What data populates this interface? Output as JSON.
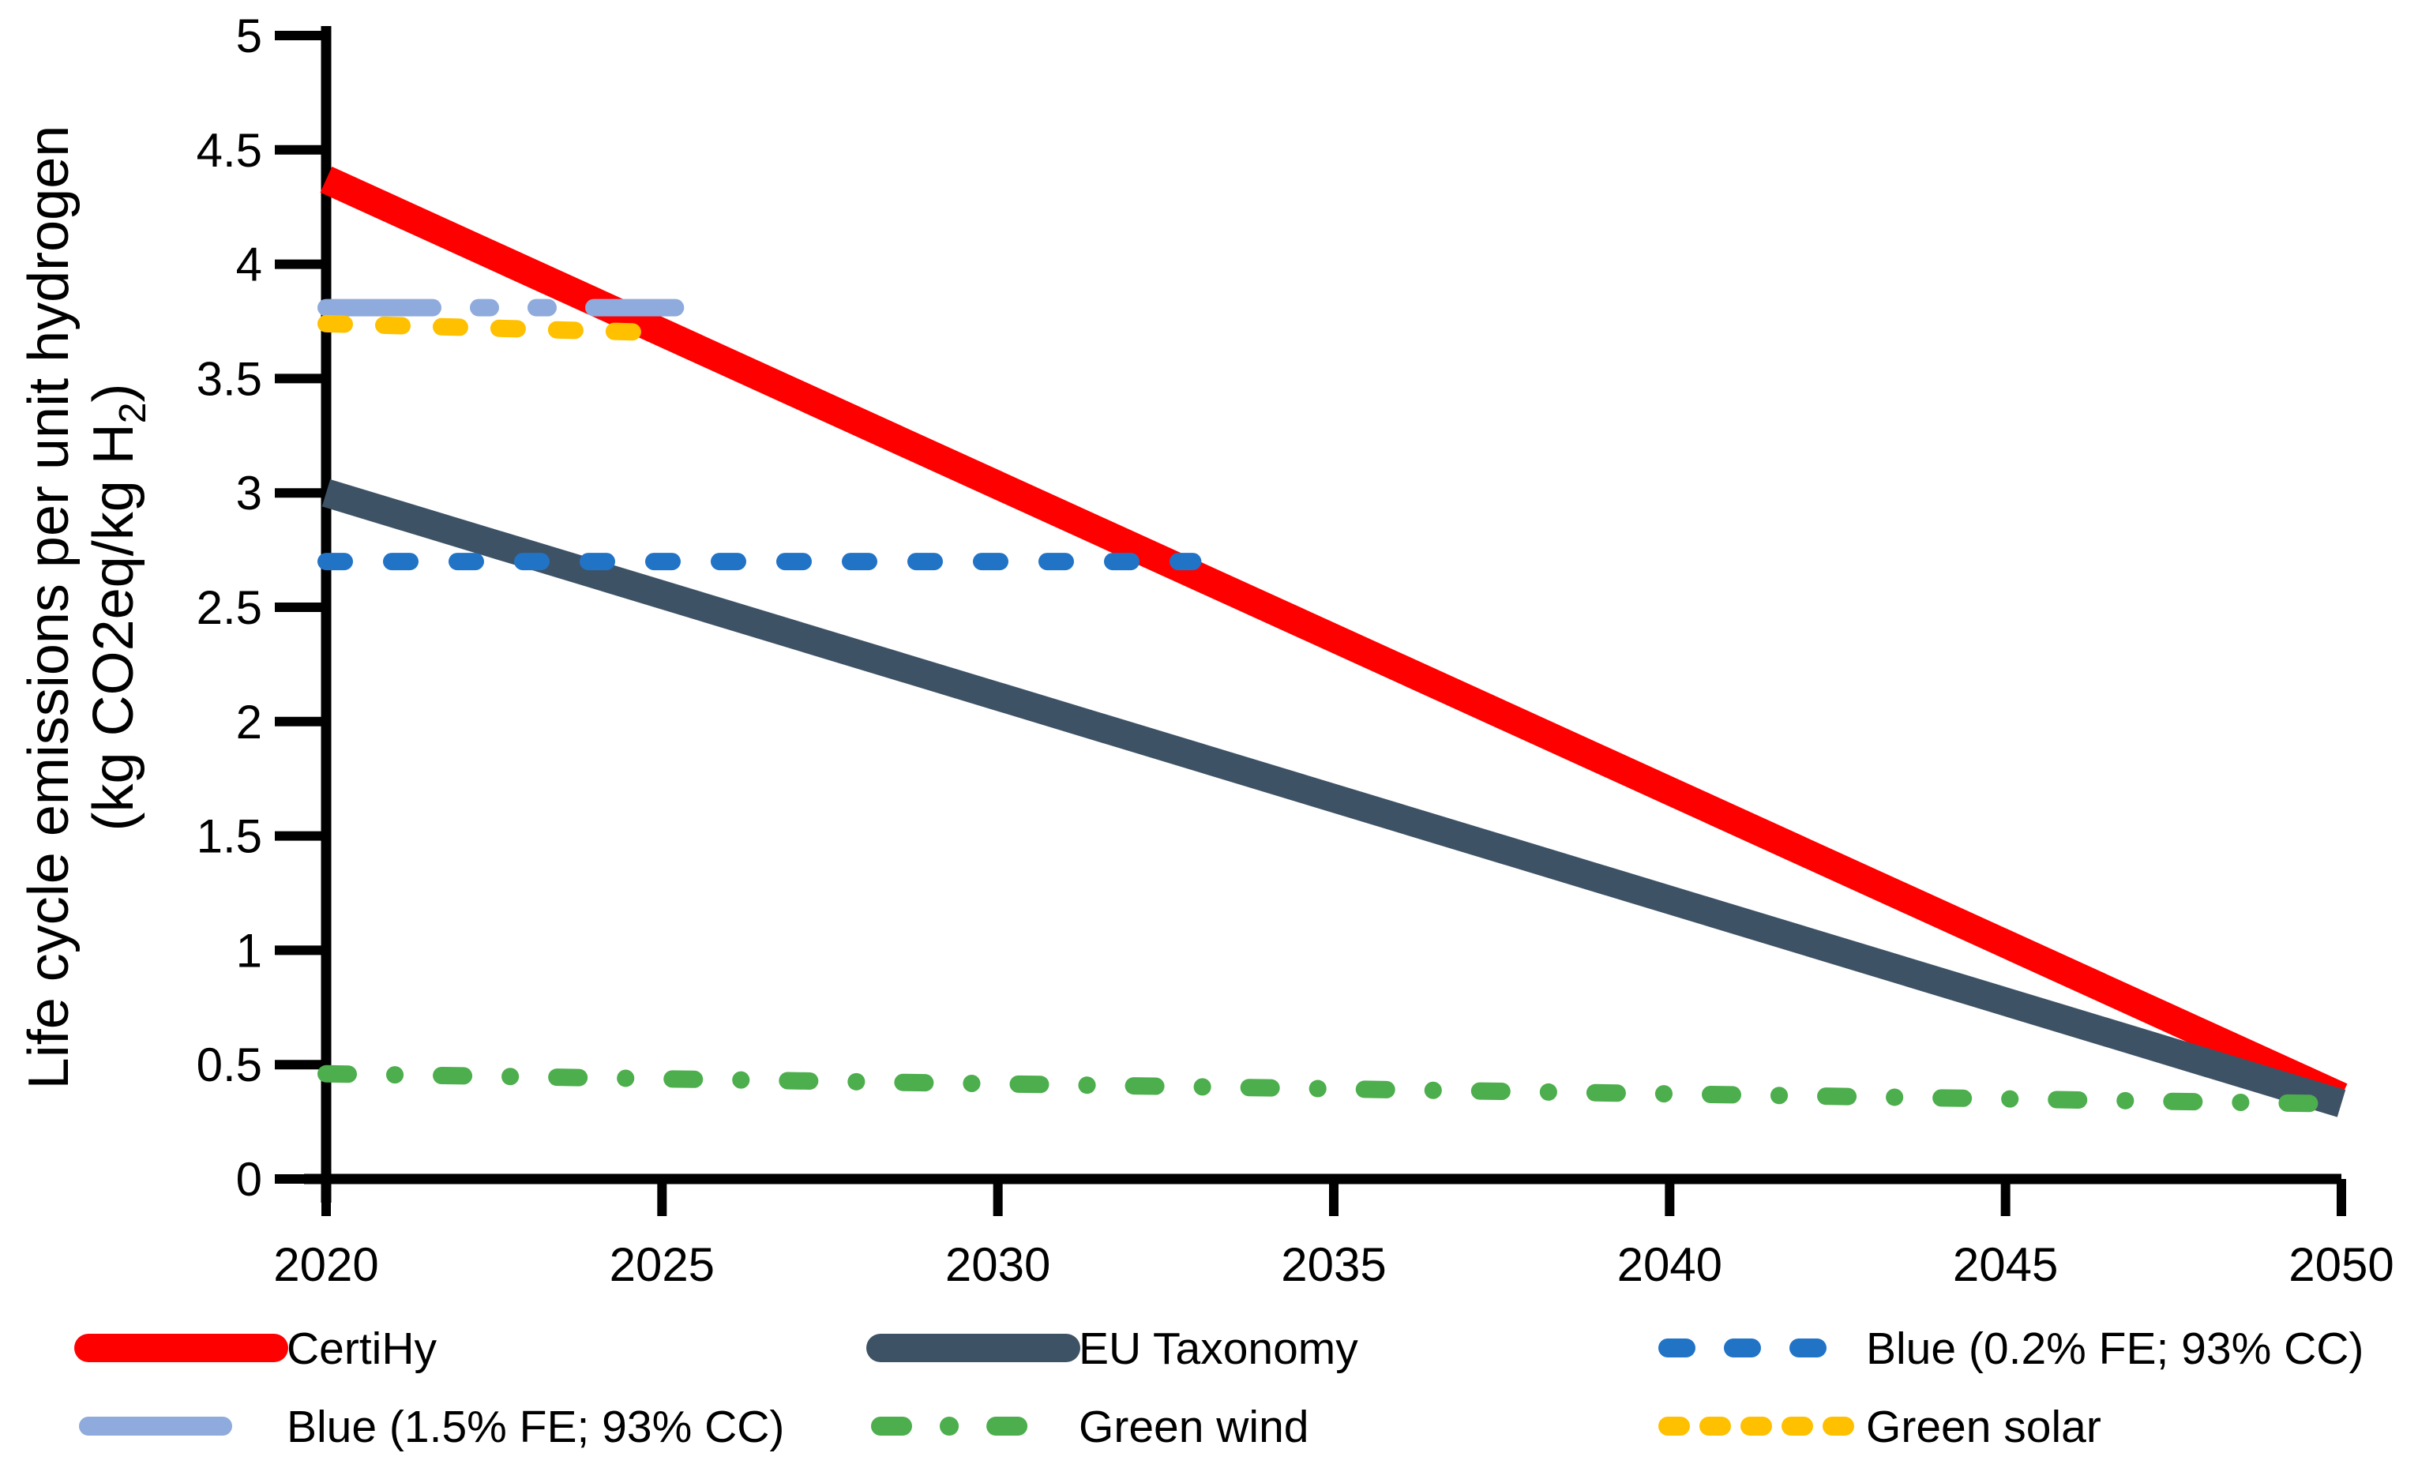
{
  "chart_data": {
    "type": "line",
    "title": "",
    "xlabel": "",
    "ylabel_line1": "Life cycle emissions per unit hydrogen",
    "ylabel_line2_prefix": "(kg CO2eq/kg H",
    "ylabel_line2_subscript": "2",
    "ylabel_line2_suffix": ")",
    "xlim": [
      2020,
      2050
    ],
    "ylim": [
      0,
      5
    ],
    "x_ticks": [
      2020,
      2025,
      2030,
      2035,
      2040,
      2045,
      2050
    ],
    "x_tick_labels": [
      "2020",
      "2025",
      "2030",
      "2035",
      "2040",
      "2045",
      "2050"
    ],
    "y_ticks": [
      0,
      0.5,
      1,
      1.5,
      2,
      2.5,
      3,
      3.5,
      4,
      4.5,
      5
    ],
    "y_tick_labels": [
      "0",
      "0.5",
      "1",
      "1.5",
      "2",
      "2.5",
      "3",
      "3.5",
      "4",
      "4.5",
      "5"
    ],
    "grid": false,
    "axis_color": "#000000",
    "background_color": "#ffffff",
    "legend_position": "bottom",
    "legend_rows": 2,
    "legend_columns": 3,
    "series": [
      {
        "name": "CertiHy",
        "color": "#FF0000",
        "style": "solid",
        "width": 36,
        "x": [
          2020,
          2050
        ],
        "y": [
          4.37,
          0.36
        ]
      },
      {
        "name": "EU Taxonomy",
        "color": "#3E5266",
        "style": "solid",
        "width": 36,
        "x": [
          2020,
          2050
        ],
        "y": [
          3.0,
          0.33
        ]
      },
      {
        "name": "Blue (0.2% FE; 93% CC)",
        "color": "#2173C6",
        "style": "dash",
        "width": 22,
        "x": [
          2020,
          2032.9
        ],
        "y": [
          2.7,
          2.7
        ]
      },
      {
        "name": "Blue (1.5% FE; 93% CC)",
        "color": "#8FAADC",
        "style": "long-dash-dot-dot",
        "width": 22,
        "x": [
          2020,
          2025.2
        ],
        "y": [
          3.81,
          3.81
        ]
      },
      {
        "name": "Green wind",
        "color": "#4CAE4C",
        "style": "dash-dot",
        "width": 22,
        "x": [
          2020,
          2049.6
        ],
        "y": [
          0.46,
          0.33
        ]
      },
      {
        "name": "Green solar",
        "color": "#FFC000",
        "style": "dash-short",
        "width": 22,
        "x": [
          2020,
          2025.1
        ],
        "y": [
          3.74,
          3.7
        ]
      }
    ]
  }
}
